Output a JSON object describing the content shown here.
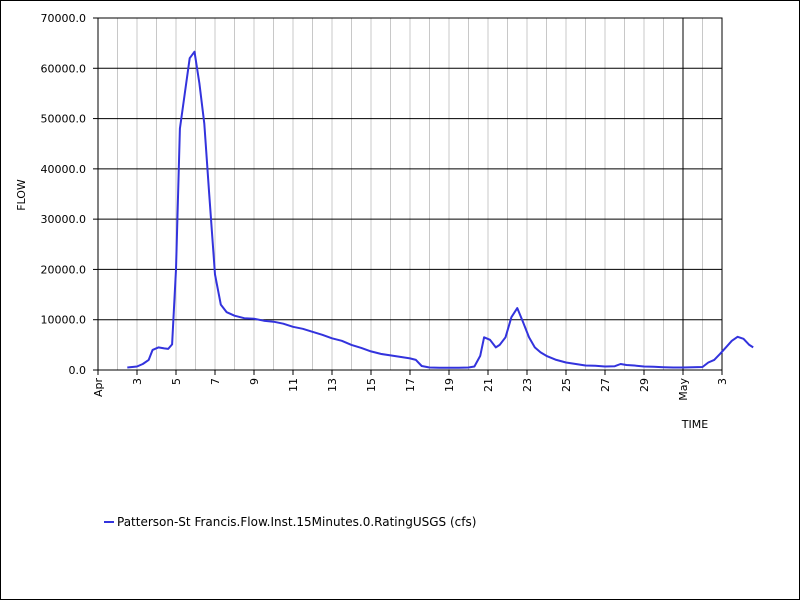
{
  "chart_data": {
    "type": "line",
    "ylabel": "FLOW",
    "xlabel": "TIME",
    "ylim": [
      0,
      70000
    ],
    "xlim": [
      "Apr 1",
      "May 3"
    ],
    "y_ticks": [
      "0.0",
      "10000.0",
      "20000.0",
      "30000.0",
      "40000.0",
      "50000.0",
      "60000.0",
      "70000.0"
    ],
    "x_ticks": [
      {
        "day": 1,
        "label": "Apr"
      },
      {
        "day": 3,
        "label": "3"
      },
      {
        "day": 5,
        "label": "5"
      },
      {
        "day": 7,
        "label": "7"
      },
      {
        "day": 9,
        "label": "9"
      },
      {
        "day": 11,
        "label": "11"
      },
      {
        "day": 13,
        "label": "13"
      },
      {
        "day": 15,
        "label": "15"
      },
      {
        "day": 17,
        "label": "17"
      },
      {
        "day": 19,
        "label": "19"
      },
      {
        "day": 21,
        "label": "21"
      },
      {
        "day": 23,
        "label": "23"
      },
      {
        "day": 25,
        "label": "25"
      },
      {
        "day": 27,
        "label": "27"
      },
      {
        "day": 29,
        "label": "29"
      },
      {
        "day": 31,
        "label": "May"
      },
      {
        "day": 33,
        "label": "3"
      }
    ],
    "month_boundary_day": 31,
    "grid": true,
    "legend_position": "bottom-left",
    "series": [
      {
        "name": "Patterson-St Francis.Flow.Inst.15Minutes.0.RatingUSGS (cfs)",
        "color": "#3333dd",
        "points": [
          [
            2.5,
            500
          ],
          [
            3.0,
            700
          ],
          [
            3.3,
            1200
          ],
          [
            3.6,
            2000
          ],
          [
            3.8,
            4000
          ],
          [
            4.1,
            4500
          ],
          [
            4.4,
            4300
          ],
          [
            4.6,
            4200
          ],
          [
            4.8,
            5100
          ],
          [
            5.0,
            20000
          ],
          [
            5.2,
            48000
          ],
          [
            5.45,
            55000
          ],
          [
            5.7,
            62000
          ],
          [
            5.95,
            63300
          ],
          [
            6.2,
            57000
          ],
          [
            6.45,
            49000
          ],
          [
            6.7,
            35000
          ],
          [
            7.0,
            19000
          ],
          [
            7.3,
            13000
          ],
          [
            7.6,
            11500
          ],
          [
            8.0,
            10800
          ],
          [
            8.5,
            10300
          ],
          [
            9.0,
            10200
          ],
          [
            9.5,
            9800
          ],
          [
            10.0,
            9600
          ],
          [
            10.5,
            9200
          ],
          [
            11.0,
            8600
          ],
          [
            11.5,
            8200
          ],
          [
            12.0,
            7600
          ],
          [
            12.5,
            7000
          ],
          [
            13.0,
            6300
          ],
          [
            13.5,
            5800
          ],
          [
            14.0,
            5000
          ],
          [
            14.5,
            4400
          ],
          [
            15.0,
            3700
          ],
          [
            15.5,
            3200
          ],
          [
            16.0,
            2900
          ],
          [
            16.5,
            2600
          ],
          [
            17.0,
            2300
          ],
          [
            17.3,
            2000
          ],
          [
            17.6,
            800
          ],
          [
            18.0,
            500
          ],
          [
            18.5,
            450
          ],
          [
            19.0,
            450
          ],
          [
            19.5,
            450
          ],
          [
            20.0,
            500
          ],
          [
            20.3,
            700
          ],
          [
            20.6,
            2800
          ],
          [
            20.8,
            6500
          ],
          [
            21.1,
            6000
          ],
          [
            21.4,
            4500
          ],
          [
            21.6,
            5000
          ],
          [
            21.9,
            6500
          ],
          [
            22.2,
            10500
          ],
          [
            22.5,
            12300
          ],
          [
            22.8,
            9500
          ],
          [
            23.1,
            6500
          ],
          [
            23.4,
            4500
          ],
          [
            23.7,
            3500
          ],
          [
            24.0,
            2800
          ],
          [
            24.5,
            2000
          ],
          [
            25.0,
            1500
          ],
          [
            25.5,
            1200
          ],
          [
            26.0,
            900
          ],
          [
            26.5,
            850
          ],
          [
            27.0,
            700
          ],
          [
            27.5,
            750
          ],
          [
            27.8,
            1200
          ],
          [
            28.1,
            1000
          ],
          [
            28.5,
            900
          ],
          [
            29.0,
            700
          ],
          [
            29.5,
            650
          ],
          [
            30.0,
            550
          ],
          [
            30.5,
            500
          ],
          [
            31.0,
            500
          ],
          [
            31.5,
            550
          ],
          [
            32.0,
            600
          ],
          [
            32.3,
            1500
          ],
          [
            32.6,
            2000
          ],
          [
            32.9,
            3200
          ],
          [
            33.2,
            4500
          ],
          [
            33.5,
            5800
          ],
          [
            33.8,
            6600
          ],
          [
            34.1,
            6200
          ],
          [
            34.4,
            5000
          ],
          [
            34.6,
            4500
          ]
        ]
      }
    ]
  }
}
